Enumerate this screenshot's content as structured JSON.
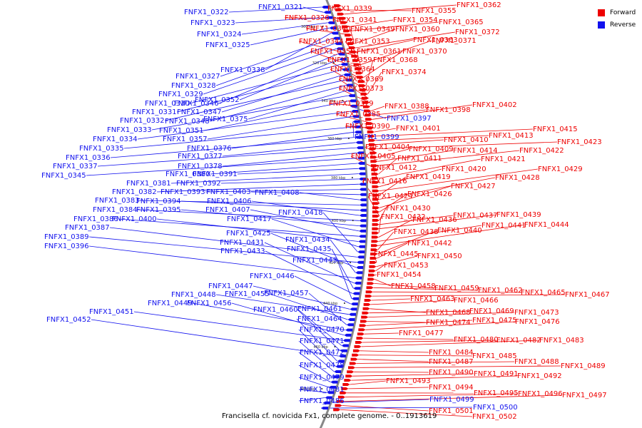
{
  "caption": "Francisella cf. novicida Fx1, complete genome. - 0..1913619",
  "legend": [
    {
      "label": "Forward",
      "color": "#ee0000"
    },
    {
      "label": "Reverse",
      "color": "#1111ee"
    }
  ],
  "colors": {
    "forward": "#ee0000",
    "reverse": "#1111ee",
    "backbone": "#888888"
  },
  "kbp_ticks": [
    "300 kbp",
    "320 kbp",
    "340 kbp",
    "360 kbp",
    "380 kbp",
    "400 kbp",
    "420 kbp",
    "440 kbp",
    "460 kbp",
    "480 kbp"
  ],
  "forward_labels": [
    "FNFX1_0339",
    "FNFX1_0355",
    "FNFX1_0362",
    "FNFX1_0326",
    "FNFX1_0341",
    "FNFX1_0354",
    "FNFX1_0365",
    "FNFX1_0340",
    "FNFX1_0349",
    "FNFX1_0360",
    "FNFX1_0372",
    "FNFX1_0363",
    "FNFX1_0344",
    "FNFX1_0353",
    "FNFX1_0371",
    "FNFX1_0350",
    "FNFX1_0361",
    "FNFX1_0370",
    "FNFX1_0359",
    "FNFX1_0368",
    "FNFX1_0364",
    "FNFX1_0374",
    "FNFX1_0369",
    "FNFX1_0373",
    "FNFX1_0379",
    "FNFX1_0388",
    "FNFX1_0398",
    "FNFX1_0402",
    "FNFX1_0385",
    "FNFX1_0390",
    "FNFX1_0401",
    "FNFX1_0415",
    "FNFX1_0413",
    "FNFX1_0410",
    "FNFX1_0423",
    "FNFX1_0404",
    "FNFX1_0409",
    "FNFX1_0414",
    "FNFX1_0422",
    "FNFX1_0405",
    "FNFX1_0411",
    "FNFX1_0421",
    "FNFX1_0412",
    "FNFX1_0420",
    "FNFX1_0429",
    "FNFX1_0419",
    "FNFX1_0428",
    "FNFX1_0416",
    "FNFX1_0427",
    "FNFX1_0426",
    "FNFX1_0424",
    "FNFX1_0430",
    "FNFX1_0437",
    "FNFX1_0439",
    "FNFX1_0432",
    "FNFX1_0436",
    "FNFX1_0441",
    "FNFX1_0444",
    "FNFX1_0438",
    "FNFX1_0440",
    "FNFX1_0442",
    "FNFX1_0445",
    "FNFX1_0450",
    "FNFX1_0453",
    "FNFX1_0454",
    "FNFX1_0458",
    "FNFX1_0459",
    "FNFX1_0462",
    "FNFX1_0465",
    "FNFX1_0467",
    "FNFX1_0463",
    "FNFX1_0466",
    "FNFX1_0468",
    "FNFX1_0469",
    "FNFX1_0473",
    "FNFX1_0474",
    "FNFX1_0475",
    "FNFX1_0476",
    "FNFX1_0477",
    "FNFX1_0480",
    "FNFX1_0482",
    "FNFX1_0483",
    "FNFX1_0484",
    "FNFX1_0485",
    "FNFX1_0487",
    "FNFX1_0488",
    "FNFX1_0489",
    "FNFX1_0490",
    "FNFX1_0491",
    "FNFX1_0492",
    "FNFX1_0493",
    "FNFX1_0494",
    "FNFX1_0495",
    "FNFX1_0496",
    "FNFX1_0497",
    "FNFX1_0501",
    "FNFX1_0502"
  ],
  "reverse_labels": [
    "FNFX1_0322",
    "FNFX1_0321",
    "FNFX1_0323",
    "FNFX1_0324",
    "FNFX1_0325",
    "FNFX1_0338",
    "FNFX1_0327",
    "FNFX1_0328",
    "FNFX1_0329",
    "FNFX1_0346",
    "FNFX1_0352",
    "FNFX1_0330",
    "FNFX1_0331",
    "FNFX1_0347",
    "FNFX1_0332",
    "FNFX1_0348",
    "FNFX1_0375",
    "FNFX1_0333",
    "FNFX1_0351",
    "FNFX1_0397",
    "FNFX1_0334",
    "FNFX1_0357",
    "FNFX1_0399",
    "FNFX1_0335",
    "FNFX1_0376",
    "FNFX1_0336",
    "FNFX1_0377",
    "FNFX1_0337",
    "FNFX1_0378",
    "FNFX1_0345",
    "FNFX1_0380",
    "FNFX1_0391",
    "FNFX1_0381",
    "FNFX1_0392",
    "FNFX1_0382",
    "FNFX1_0393",
    "FNFX1_0403",
    "FNFX1_0408",
    "FNFX1_0383",
    "FNFX1_0394",
    "FNFX1_0406",
    "FNFX1_0384",
    "FNFX1_0395",
    "FNFX1_0407",
    "FNFX1_0386",
    "FNFX1_0400",
    "FNFX1_0417",
    "FNFX1_0418",
    "FNFX1_0387",
    "FNFX1_0389",
    "FNFX1_0425",
    "FNFX1_0434",
    "FNFX1_0396",
    "FNFX1_0431",
    "FNFX1_0435",
    "FNFX1_0433",
    "FNFX1_0443",
    "FNFX1_0446",
    "FNFX1_0447",
    "FNFX1_0448",
    "FNFX1_0455",
    "FNFX1_0457",
    "FNFX1_0449",
    "FNFX1_0456",
    "FNFX1_0451",
    "FNFX1_0460",
    "FNFX1_0461",
    "FNFX1_0452",
    "FNFX1_0464",
    "FNFX1_0470",
    "FNFX1_0471",
    "FNFX1_0472",
    "FNFX1_0478",
    "FNFX1_0479",
    "FNFX1_0481",
    "FNFX1_0486",
    "FNFX1_0499",
    "FNFX1_0500"
  ]
}
